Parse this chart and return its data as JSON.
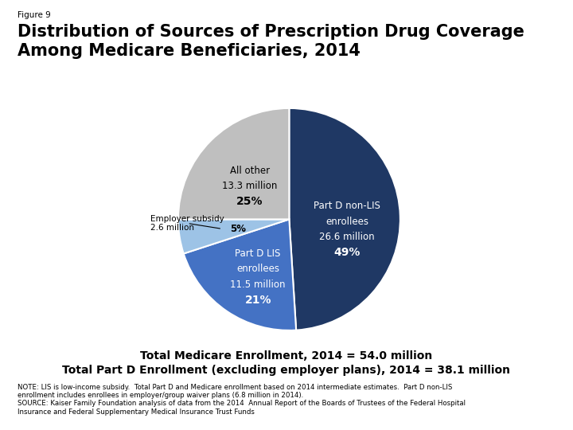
{
  "figure_label": "Figure 9",
  "title": "Distribution of Sources of Prescription Drug Coverage\nAmong Medicare Beneficiaries, 2014",
  "slices": [
    49,
    21,
    5,
    25
  ],
  "slice_colors": [
    "#1f3864",
    "#4472c4",
    "#9dc3e6",
    "#bfbfbf"
  ],
  "startangle": 90,
  "employer_label": "Employer subsidy\n2.6 million",
  "footer_line1": "Total Medicare Enrollment, 2014 = 54.0 million",
  "footer_line2": "Total Part D Enrollment (excluding employer plans), 2014 = 38.1 million",
  "note_text": "NOTE: LIS is low-income subsidy.  Total Part D and Medicare enrollment based on 2014 intermediate estimates.  Part D non-LIS\nenrollment includes enrollees in employer/group waiver plans (6.8 million in 2014).\nSOURCE: Kaiser Family Foundation analysis of data from the 2014  Annual Report of the Boards of Trustees of the Federal Hospital\nInsurance and Federal Supplementary Medical Insurance Trust Funds",
  "bg_color": "#ffffff",
  "label_0_lines": [
    "Part D non-LIS",
    "enrollees",
    "26.6 million",
    "49%"
  ],
  "label_0_color": "#ffffff",
  "label_1_lines": [
    "Part D LIS",
    "enrollees",
    "11.5 million",
    "21%"
  ],
  "label_1_color": "#ffffff",
  "label_2_line": "5%",
  "label_2_color": "#000000",
  "label_3_lines": [
    "All other",
    "13.3 million",
    "25%"
  ],
  "label_3_color": "#000000"
}
